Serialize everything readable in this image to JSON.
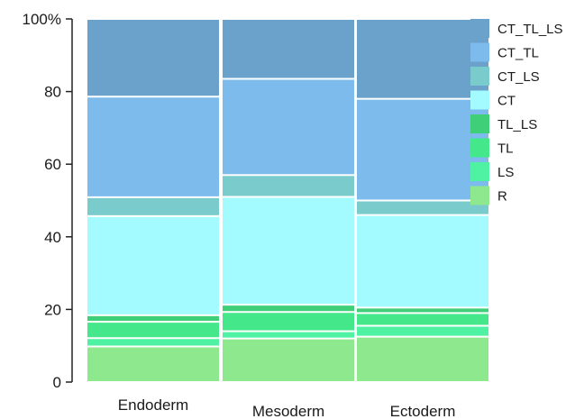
{
  "chart_data": {
    "type": "bar",
    "stacked": true,
    "categories": [
      "Endoderm",
      "Mesoderm",
      "Ectoderm"
    ],
    "ylim": [
      0,
      100
    ],
    "yticks": [
      {
        "value": 0,
        "label": "0"
      },
      {
        "value": 20,
        "label": "20"
      },
      {
        "value": 40,
        "label": "40"
      },
      {
        "value": 60,
        "label": "60"
      },
      {
        "value": 80,
        "label": "80"
      },
      {
        "value": 100,
        "label": "100%"
      }
    ],
    "grid": false,
    "legend_position": "right",
    "series": [
      {
        "name": "R",
        "color": "#8ee88e",
        "values": [
          9.8,
          12.0,
          12.5
        ]
      },
      {
        "name": "LS",
        "color": "#4ff2a2",
        "values": [
          2.3,
          2.0,
          3.0
        ]
      },
      {
        "name": "TL",
        "color": "#44e88a",
        "values": [
          4.5,
          5.3,
          3.5
        ]
      },
      {
        "name": "TL_LS",
        "color": "#3ecf78",
        "values": [
          1.8,
          2.0,
          1.5
        ]
      },
      {
        "name": "CT",
        "color": "#a3fbff",
        "values": [
          27.3,
          29.7,
          25.5
        ]
      },
      {
        "name": "CT_LS",
        "color": "#79cccb",
        "values": [
          5.2,
          6.0,
          4.0
        ]
      },
      {
        "name": "CT_TL",
        "color": "#7cbbec",
        "values": [
          27.7,
          26.5,
          28.0
        ]
      },
      {
        "name": "CT_TL_LS",
        "color": "#6aa2cc",
        "values": [
          21.4,
          16.5,
          22.0
        ]
      }
    ]
  }
}
